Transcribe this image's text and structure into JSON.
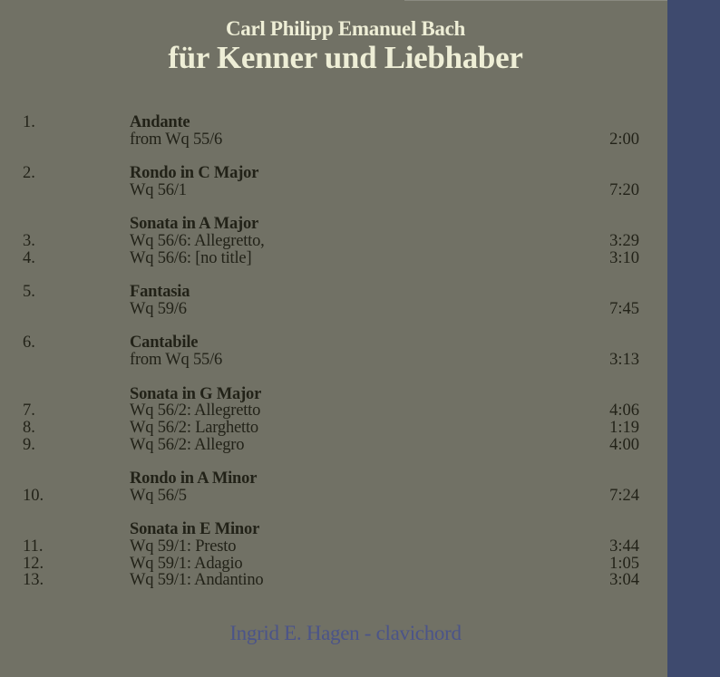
{
  "cover": {
    "composer": "Carl Philipp Emanuel Bach",
    "title": "für Kenner und Liebhaber",
    "artist": "Ingrid E. Hagen - clavichord",
    "colors": {
      "background": "#717165",
      "strip": "#3e4a6e",
      "title": "#eeeed6",
      "artist": "#4b5489",
      "text": "#222218"
    }
  },
  "groups": [
    {
      "number": "1.",
      "heading": "Andante",
      "tracks": [
        {
          "number": "",
          "subtitle": "from Wq 55/6",
          "duration": "2:00"
        }
      ]
    },
    {
      "number": "2.",
      "heading": "Rondo in C Major",
      "tracks": [
        {
          "number": "",
          "subtitle": "Wq 56/1",
          "duration": "7:20"
        }
      ]
    },
    {
      "number": "",
      "heading": "Sonata in A Major",
      "tracks": [
        {
          "number": "3.",
          "subtitle": "Wq 56/6: Allegretto,",
          "duration": "3:29"
        },
        {
          "number": "4.",
          "subtitle": "Wq 56/6: [no title]",
          "duration": "3:10"
        }
      ]
    },
    {
      "number": "5.",
      "heading": "Fantasia",
      "tracks": [
        {
          "number": "",
          "subtitle": "Wq 59/6",
          "duration": "7:45"
        }
      ]
    },
    {
      "number": "6.",
      "heading": "Cantabile",
      "tracks": [
        {
          "number": "",
          "subtitle": "from Wq 55/6",
          "duration": "3:13"
        }
      ]
    },
    {
      "number": "",
      "heading": "Sonata in G Major",
      "tracks": [
        {
          "number": "7.",
          "subtitle": "Wq 56/2: Allegretto",
          "duration": "4:06"
        },
        {
          "number": "8.",
          "subtitle": "Wq 56/2: Larghetto",
          "duration": "1:19"
        },
        {
          "number": "9.",
          "subtitle": "Wq 56/2: Allegro",
          "duration": "4:00"
        }
      ]
    },
    {
      "number": "",
      "heading": "Rondo in A Minor",
      "tracks": [
        {
          "number": "10.",
          "subtitle": "Wq 56/5",
          "duration": "7:24"
        }
      ]
    },
    {
      "number": "",
      "heading": "Sonata in E Minor",
      "tracks": [
        {
          "number": "11.",
          "subtitle": "Wq 59/1: Presto",
          "duration": "3:44"
        },
        {
          "number": "12.",
          "subtitle": "Wq 59/1: Adagio",
          "duration": "1:05"
        },
        {
          "number": "13.",
          "subtitle": "Wq 59/1: Andantino",
          "duration": "3:04"
        }
      ]
    }
  ]
}
